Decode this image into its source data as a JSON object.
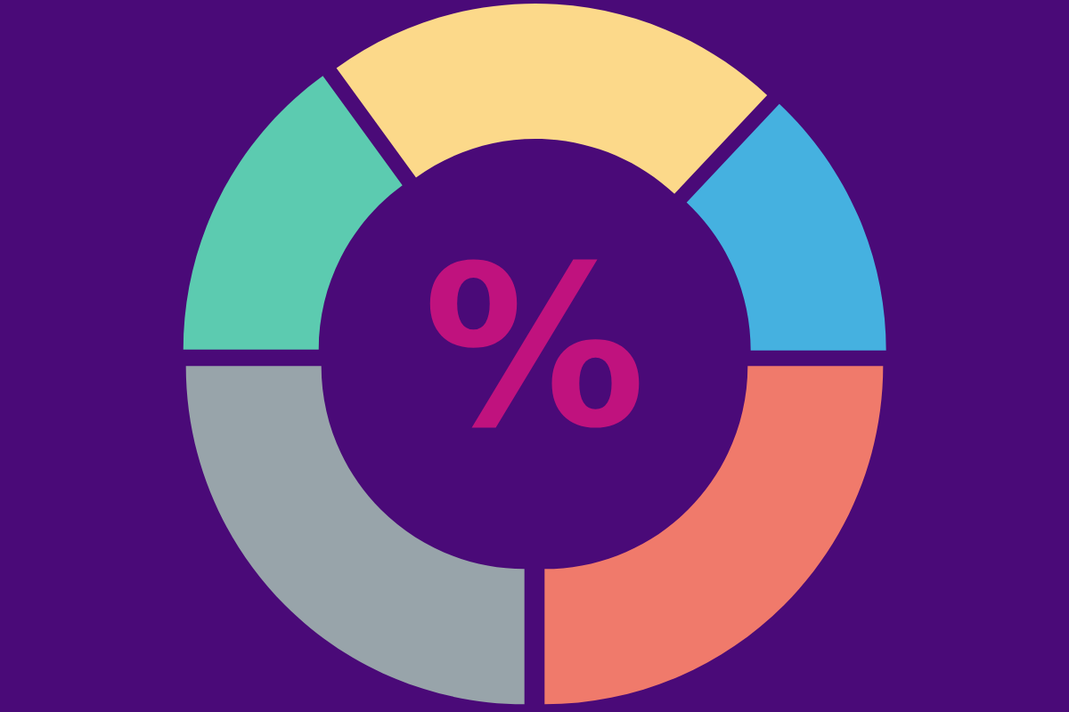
{
  "chart_data": {
    "type": "donut",
    "categories": [
      null,
      null,
      null,
      null,
      null
    ],
    "values": [
      25,
      25,
      15,
      22,
      13
    ],
    "colors": [
      "#f07a6b",
      "#98a4aa",
      "#5ccbb0",
      "#fcd98a",
      "#45b1e0"
    ],
    "annotations": [
      "%"
    ]
  }
}
